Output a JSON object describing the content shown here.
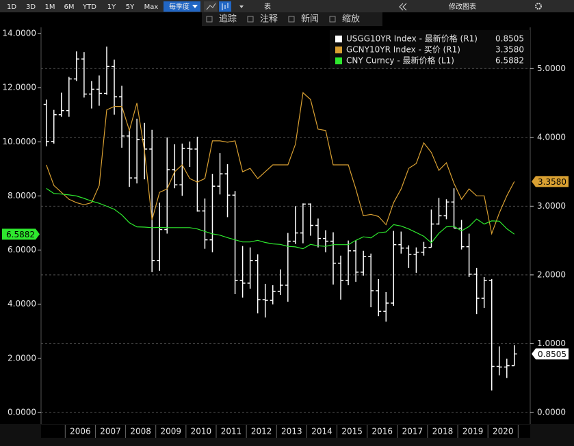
{
  "toolbar": {
    "periods": [
      "1D",
      "3D",
      "1M",
      "6M",
      "YTD",
      "1Y",
      "5Y",
      "Max"
    ],
    "frequency": "每季度",
    "table": "表",
    "edit": "修改图表",
    "tools": [
      "追踪",
      "注释",
      "新闻",
      "缩放"
    ]
  },
  "chart_data": {
    "type": "ohlc",
    "grid": true,
    "x": [
      2005.375,
      2005.625,
      2005.875,
      2006.125,
      2006.375,
      2006.625,
      2006.875,
      2007.125,
      2007.375,
      2007.625,
      2007.875,
      2008.125,
      2008.375,
      2008.625,
      2008.875,
      2009.125,
      2009.375,
      2009.625,
      2009.875,
      2010.125,
      2010.375,
      2010.625,
      2010.875,
      2011.125,
      2011.375,
      2011.625,
      2011.875,
      2012.125,
      2012.375,
      2012.625,
      2012.875,
      2013.125,
      2013.375,
      2013.625,
      2013.875,
      2014.125,
      2014.375,
      2014.625,
      2014.875,
      2015.125,
      2015.375,
      2015.625,
      2015.875,
      2016.125,
      2016.375,
      2016.625,
      2016.875,
      2017.125,
      2017.375,
      2017.625,
      2017.875,
      2018.125,
      2018.375,
      2018.625,
      2018.875,
      2019.125,
      2019.375,
      2019.625,
      2019.875,
      2020.125,
      2020.375,
      2020.625,
      2020.875
    ],
    "xlim": [
      2005.2,
      2021.4
    ],
    "xticks": [
      {
        "value": 2006.5,
        "label": "2006"
      },
      {
        "value": 2007.5,
        "label": "2007"
      },
      {
        "value": 2008.5,
        "label": "2008"
      },
      {
        "value": 2009.5,
        "label": "2009"
      },
      {
        "value": 2010.5,
        "label": "2010"
      },
      {
        "value": 2011.5,
        "label": "2011"
      },
      {
        "value": 2012.5,
        "label": "2012"
      },
      {
        "value": 2013.5,
        "label": "2013"
      },
      {
        "value": 2014.5,
        "label": "2014"
      },
      {
        "value": 2015.5,
        "label": "2015"
      },
      {
        "value": 2016.5,
        "label": "2016"
      },
      {
        "value": 2017.5,
        "label": "2017"
      },
      {
        "value": 2018.5,
        "label": "2018"
      },
      {
        "value": 2019.5,
        "label": "2019"
      },
      {
        "value": 2020.5,
        "label": "2020"
      }
    ],
    "ylim": [
      -0.43,
      14.23
    ],
    "yticks": [
      {
        "value": 0,
        "label": "0.0000"
      },
      {
        "value": 2,
        "label": "2.0000"
      },
      {
        "value": 4,
        "label": "4.0000"
      },
      {
        "value": 6,
        "label": "6.0000"
      },
      {
        "value": 8,
        "label": "8.0000"
      },
      {
        "value": 10,
        "label": "10.0000"
      },
      {
        "value": 12,
        "label": "12.0000"
      },
      {
        "value": 14,
        "label": "14.0000"
      }
    ],
    "y2lim": [
      -0.17,
      5.6
    ],
    "y2ticks": [
      {
        "value": 0,
        "label": "0.0000"
      },
      {
        "value": 1,
        "label": "1.0000"
      },
      {
        "value": 2,
        "label": "2.0000"
      },
      {
        "value": 3,
        "label": "3.0000"
      },
      {
        "value": 4,
        "label": "4.0000"
      },
      {
        "value": 5,
        "label": "5.0000"
      }
    ],
    "series": [
      {
        "name": "USGG10YR Index - 最新价格 (R1)",
        "type": "ohlc",
        "axis": "y2",
        "color": "#ffffff",
        "open": [
          4.48,
          3.94,
          4.33,
          4.39,
          4.85,
          5.14,
          4.63,
          4.7,
          4.64,
          5.03,
          4.59,
          4.02,
          3.41,
          3.97,
          3.83,
          2.21,
          2.66,
          3.53,
          3.31,
          3.84,
          3.83,
          2.93,
          2.51,
          3.29,
          3.47,
          3.16,
          1.92,
          1.88,
          2.21,
          1.64,
          1.63,
          1.76,
          1.85,
          2.49,
          2.61,
          3.03,
          2.72,
          2.53,
          2.49,
          2.17,
          1.92,
          2.35,
          2.04,
          2.27,
          1.77,
          1.47,
          1.59,
          2.44,
          2.39,
          2.3,
          2.33,
          2.4,
          2.74,
          2.86,
          3.06,
          2.68,
          2.41,
          2.01,
          1.66,
          1.92,
          0.67,
          0.66,
          0.68
        ],
        "high": [
          4.55,
          4.4,
          4.65,
          4.88,
          5.25,
          5.24,
          4.82,
          4.9,
          5.32,
          5.13,
          4.75,
          4.1,
          4.27,
          4.21,
          4.11,
          3.05,
          4.0,
          3.9,
          3.91,
          3.94,
          4.01,
          3.11,
          3.47,
          3.77,
          3.61,
          3.22,
          2.42,
          2.4,
          2.3,
          1.87,
          1.85,
          2.08,
          2.61,
          3.0,
          3.04,
          3.04,
          2.82,
          2.65,
          2.62,
          2.28,
          2.5,
          2.5,
          2.35,
          2.31,
          1.94,
          1.75,
          2.64,
          2.63,
          2.43,
          2.4,
          2.48,
          2.95,
          3.12,
          3.1,
          3.26,
          2.8,
          2.6,
          2.1,
          1.97,
          1.94,
          0.96,
          0.78,
          0.98
        ],
        "low": [
          3.87,
          3.91,
          4.3,
          4.3,
          4.82,
          4.58,
          4.42,
          4.46,
          4.62,
          4.33,
          3.85,
          3.28,
          3.33,
          3.39,
          2.04,
          2.06,
          2.6,
          3.26,
          3.15,
          3.57,
          2.92,
          2.38,
          2.33,
          3.17,
          2.84,
          1.72,
          1.67,
          1.8,
          1.44,
          1.38,
          1.57,
          1.71,
          1.61,
          2.45,
          2.46,
          2.57,
          2.4,
          2.33,
          1.86,
          1.64,
          1.85,
          1.9,
          1.99,
          1.53,
          1.4,
          1.32,
          1.55,
          2.31,
          2.1,
          2.03,
          2.28,
          2.4,
          2.73,
          2.81,
          2.68,
          2.37,
          1.97,
          1.43,
          1.52,
          0.32,
          0.54,
          0.5,
          0.68
        ],
        "close": [
          3.94,
          4.33,
          4.39,
          4.85,
          5.14,
          4.63,
          4.7,
          4.64,
          5.03,
          4.59,
          4.02,
          3.41,
          3.97,
          3.83,
          2.21,
          2.66,
          3.53,
          3.31,
          3.84,
          3.83,
          2.93,
          2.51,
          3.29,
          3.47,
          3.16,
          1.92,
          1.88,
          2.21,
          1.64,
          1.63,
          1.76,
          1.85,
          2.49,
          2.61,
          3.03,
          2.72,
          2.53,
          2.49,
          2.17,
          1.92,
          2.35,
          2.04,
          2.27,
          1.77,
          1.47,
          1.59,
          2.44,
          2.39,
          2.3,
          2.33,
          2.4,
          2.74,
          2.86,
          3.06,
          2.68,
          2.41,
          2.01,
          1.66,
          1.92,
          0.67,
          0.66,
          0.68,
          0.8505
        ]
      },
      {
        "name": "GCNY10YR Index - 买价 (R1)",
        "type": "line",
        "axis": "y2",
        "color": "#d9a032",
        "values": [
          3.6,
          3.3,
          3.2,
          3.1,
          3.05,
          3.02,
          3.05,
          3.3,
          4.4,
          4.45,
          4.45,
          4.1,
          4.5,
          3.8,
          2.8,
          3.2,
          3.25,
          3.5,
          3.6,
          3.4,
          3.35,
          3.4,
          3.95,
          3.95,
          3.93,
          3.95,
          3.5,
          3.55,
          3.4,
          3.5,
          3.6,
          3.6,
          3.6,
          3.9,
          4.65,
          4.55,
          4.12,
          4.1,
          3.6,
          3.6,
          3.6,
          3.25,
          2.86,
          2.88,
          2.85,
          2.73,
          3.05,
          3.25,
          3.55,
          3.62,
          3.92,
          3.78,
          3.52,
          3.63,
          3.33,
          3.1,
          3.25,
          3.15,
          3.15,
          2.6,
          2.9,
          3.15,
          3.358
        ],
        "value_labels": [
          null,
          null,
          null,
          null,
          null,
          null,
          null,
          null,
          null,
          null,
          null,
          null,
          null,
          null,
          null,
          null,
          null,
          null,
          null,
          null,
          null,
          null,
          null,
          null,
          null,
          null,
          null,
          null,
          null,
          null,
          null,
          null,
          null,
          null,
          null,
          null,
          null,
          null,
          null,
          null,
          null,
          null,
          null,
          null,
          null,
          null,
          null,
          null,
          null,
          null,
          null,
          null,
          null,
          null,
          null,
          null,
          null,
          null,
          null,
          null,
          null,
          null,
          "3.3580"
        ]
      },
      {
        "name": "CNY Curncy - 最新价格 (L1)",
        "type": "line",
        "axis": "y",
        "color": "#2ee82e",
        "values": [
          8.28,
          8.09,
          8.07,
          8.04,
          8.0,
          7.91,
          7.81,
          7.73,
          7.62,
          7.51,
          7.3,
          7.01,
          6.86,
          6.85,
          6.83,
          6.84,
          6.83,
          6.83,
          6.83,
          6.83,
          6.78,
          6.69,
          6.6,
          6.55,
          6.46,
          6.38,
          6.3,
          6.3,
          6.36,
          6.28,
          6.23,
          6.21,
          6.14,
          6.12,
          6.05,
          6.21,
          6.16,
          6.14,
          6.2,
          6.2,
          6.2,
          6.36,
          6.49,
          6.45,
          6.64,
          6.67,
          6.94,
          6.89,
          6.78,
          6.65,
          6.51,
          6.27,
          6.62,
          6.86,
          6.88,
          6.71,
          6.87,
          7.15,
          6.96,
          7.08,
          7.07,
          6.79,
          6.5882
        ]
      }
    ]
  }
}
